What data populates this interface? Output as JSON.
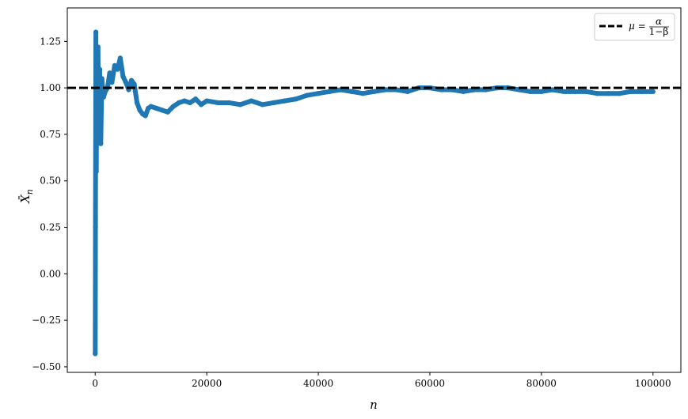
{
  "chart_data": {
    "type": "scatter",
    "xlabel": "n",
    "ylabel": "X̄",
    "ylabel_subscript": "n",
    "xlim": [
      -5000,
      105000
    ],
    "ylim": [
      -0.53,
      1.43
    ],
    "xticks": [
      0,
      20000,
      40000,
      60000,
      80000,
      100000
    ],
    "xtick_labels": [
      "0",
      "20000",
      "40000",
      "60000",
      "80000",
      "100000"
    ],
    "yticks": [
      -0.5,
      -0.25,
      0.0,
      0.25,
      0.5,
      0.75,
      1.0,
      1.25
    ],
    "ytick_labels": [
      "−0.50",
      "−0.25",
      "0.00",
      "0.25",
      "0.50",
      "0.75",
      "1.00",
      "1.25"
    ],
    "grid": false,
    "legend_position": "top-right",
    "reference_line": {
      "y": 1.0,
      "style": "dashed",
      "color": "#000000",
      "legend_label": "μ = α/(1−β)",
      "legend_symbol": "μ",
      "legend_numerator": "α",
      "legend_denominator": "1−β"
    },
    "series": [
      {
        "color": "#1f77b4",
        "x": [
          10,
          50,
          120,
          200,
          300,
          400,
          500,
          650,
          800,
          1000,
          1200,
          1500,
          1800,
          2200,
          2600,
          3000,
          3500,
          4000,
          4500,
          5000,
          5500,
          6000,
          6500,
          7000,
          7500,
          8000,
          8500,
          9000,
          9500,
          10000,
          11000,
          12000,
          13000,
          14000,
          15000,
          16000,
          17000,
          18000,
          19000,
          20000,
          22000,
          24000,
          26000,
          28000,
          30000,
          32000,
          34000,
          36000,
          38000,
          40000,
          42000,
          44000,
          46000,
          48000,
          50000,
          52000,
          54000,
          56000,
          58000,
          60000,
          62000,
          64000,
          66000,
          68000,
          70000,
          72000,
          74000,
          76000,
          78000,
          80000,
          82000,
          84000,
          86000,
          88000,
          90000,
          92000,
          94000,
          96000,
          98000,
          100000
        ],
        "y": [
          -0.43,
          0.25,
          1.3,
          0.55,
          1.15,
          0.8,
          1.22,
          0.75,
          1.1,
          0.7,
          1.05,
          0.95,
          0.98,
          1.0,
          1.08,
          1.03,
          1.12,
          1.1,
          1.16,
          1.06,
          1.03,
          0.99,
          1.04,
          1.02,
          0.92,
          0.88,
          0.86,
          0.85,
          0.89,
          0.9,
          0.89,
          0.88,
          0.87,
          0.9,
          0.92,
          0.93,
          0.92,
          0.94,
          0.91,
          0.93,
          0.92,
          0.92,
          0.91,
          0.93,
          0.91,
          0.92,
          0.93,
          0.94,
          0.96,
          0.97,
          0.98,
          0.99,
          0.98,
          0.97,
          0.98,
          0.99,
          0.99,
          0.98,
          1.0,
          1.0,
          0.99,
          0.99,
          0.98,
          0.99,
          0.99,
          1.0,
          1.0,
          0.99,
          0.98,
          0.98,
          0.99,
          0.98,
          0.98,
          0.98,
          0.97,
          0.97,
          0.97,
          0.98,
          0.98,
          0.98
        ]
      }
    ]
  }
}
